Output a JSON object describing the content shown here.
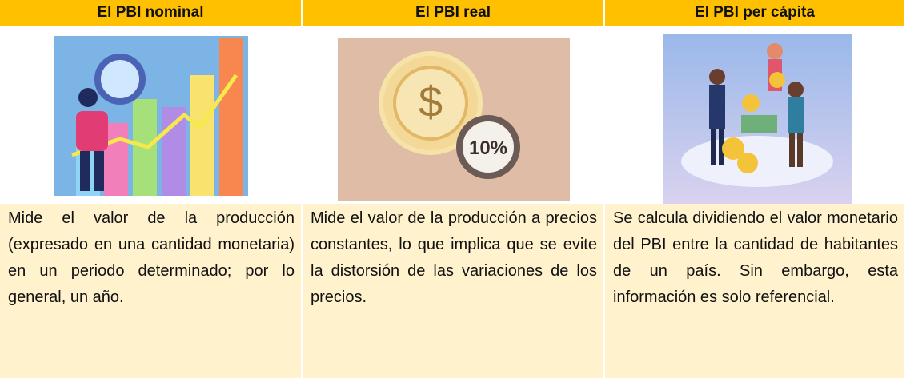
{
  "table": {
    "header": [
      "El PBI nominal",
      "El PBI real",
      "El PBI per cápita"
    ],
    "rows": [
      [
        "Mide el valor de la producción (expresado en una cantidad monetaria) en un periodo determinado; por lo general, un año.",
        "Mide el valor de la producción a precios constantes, lo que implica que se evite la distorsión de las variaciones de los precios.",
        "Se calcula dividiendo el valor monetario del PBI entre la cantidad de habitantes de un país. Sin embargo, esta información es solo referencial."
      ]
    ],
    "image_labels": [
      "10%"
    ]
  }
}
